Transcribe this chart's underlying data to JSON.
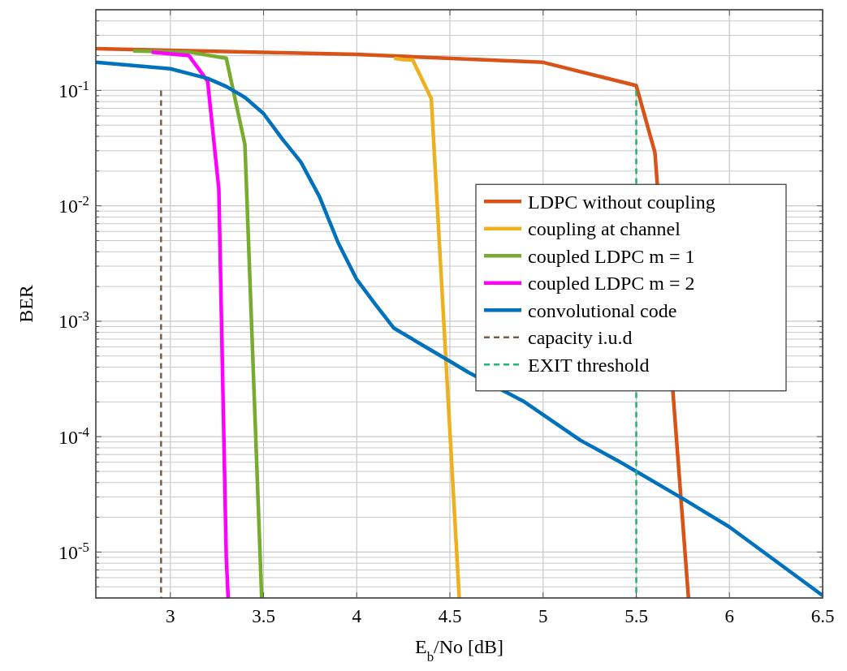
{
  "chart_data": {
    "type": "line",
    "xlabel": "E$_{b}$/No [dB]",
    "ylabel": "BER",
    "log": "y",
    "grid": true,
    "legend": "right",
    "line_style": "solid",
    "marker": "none",
    "xlim": [
      2.6,
      6.5
    ],
    "xticks": [
      3,
      3.5,
      4,
      4.5,
      5,
      5.5,
      6,
      6.5
    ],
    "ylim": [
      4e-06,
      0.5
    ],
    "yticks": [
      {
        "value": 4e-06,
        "label": null
      },
      {
        "value": 5e-06,
        "label": null
      },
      {
        "value": 6e-06,
        "label": null
      },
      {
        "value": 7e-06,
        "label": null
      },
      {
        "value": 8e-06,
        "label": null
      },
      {
        "value": 9e-06,
        "label": null
      },
      {
        "value": 1e-05,
        "label": "10$^{-5}$"
      },
      {
        "value": 2e-05,
        "label": null
      },
      {
        "value": 3e-05,
        "label": null
      },
      {
        "value": 4e-05,
        "label": null
      },
      {
        "value": 5e-05,
        "label": null
      },
      {
        "value": 6e-05,
        "label": null
      },
      {
        "value": 7e-05,
        "label": null
      },
      {
        "value": 8e-05,
        "label": null
      },
      {
        "value": 9e-05,
        "label": null
      },
      {
        "value": 0.0001,
        "label": "10$^{-4}$"
      },
      {
        "value": 0.0002,
        "label": null
      },
      {
        "value": 0.0003,
        "label": null
      },
      {
        "value": 0.0004,
        "label": null
      },
      {
        "value": 0.0005,
        "label": null
      },
      {
        "value": 0.0006,
        "label": null
      },
      {
        "value": 0.0007,
        "label": null
      },
      {
        "value": 0.0008,
        "label": null
      },
      {
        "value": 0.0009,
        "label": null
      },
      {
        "value": 0.001,
        "label": "10$^{-3}$"
      },
      {
        "value": 0.002,
        "label": null
      },
      {
        "value": 0.003,
        "label": null
      },
      {
        "value": 0.004,
        "label": null
      },
      {
        "value": 0.005,
        "label": null
      },
      {
        "value": 0.006,
        "label": null
      },
      {
        "value": 0.007,
        "label": null
      },
      {
        "value": 0.008,
        "label": null
      },
      {
        "value": 0.009,
        "label": null
      },
      {
        "value": 0.01,
        "label": "10$^{-2}$"
      },
      {
        "value": 0.02,
        "label": null
      },
      {
        "value": 0.03,
        "label": null
      },
      {
        "value": 0.04,
        "label": null
      },
      {
        "value": 0.05,
        "label": null
      },
      {
        "value": 0.06,
        "label": null
      },
      {
        "value": 0.07,
        "label": null
      },
      {
        "value": 0.08,
        "label": null
      },
      {
        "value": 0.09,
        "label": null
      },
      {
        "value": 0.1,
        "label": "10$^{-1}$"
      },
      {
        "value": 0.2,
        "label": null
      },
      {
        "value": 0.3,
        "label": null
      },
      {
        "value": 0.4,
        "label": null
      },
      {
        "value": 0.5,
        "label": null
      }
    ],
    "series": [
      {
        "name": "LDPC without coupling",
        "color": "#d95319",
        "x": [
          2.6,
          4,
          5,
          5.5,
          5.6,
          5.78
        ],
        "values": [
          0.23,
          0.205,
          0.175,
          0.11,
          0.029,
          4e-06
        ]
      },
      {
        "name": "coupling at channel",
        "color": "#edb120",
        "x": [
          4.2,
          4.25,
          4.3,
          4.4,
          4.55
        ],
        "values": [
          0.19,
          0.185,
          0.184,
          0.085,
          4e-06
        ]
      },
      {
        "name": "coupled LDPC m = 1",
        "color": "#77ac30",
        "x": [
          2.8,
          3.1,
          3.3,
          3.4,
          3.49
        ],
        "values": [
          0.22,
          0.215,
          0.19,
          0.034,
          4e-06
        ]
      },
      {
        "name": "coupled LDPC m = 2",
        "color": "#ff00ff",
        "x": [
          2.9,
          3.1,
          3.2,
          3.26,
          3.3,
          3.31
        ],
        "values": [
          0.215,
          0.2,
          0.12,
          0.014,
          9e-06,
          4e-06
        ]
      },
      {
        "name": "convolutional code",
        "color": "#0072bd",
        "x": [
          2.6,
          3,
          3.2,
          3.3,
          3.4,
          3.5,
          3.6,
          3.7,
          3.8,
          3.9,
          4,
          4.1,
          4.2,
          4.4,
          4.5,
          4.6,
          4.9,
          5,
          5.2,
          5.4,
          5.5,
          5.75,
          6,
          6.5
        ],
        "values": [
          0.175,
          0.154,
          0.127,
          0.108,
          0.087,
          0.063,
          0.038,
          0.024,
          0.012,
          0.0048,
          0.0023,
          0.0014,
          0.00087,
          0.00056,
          0.00045,
          0.00036,
          0.0002,
          0.000155,
          9.3e-05,
          6.2e-05,
          5e-05,
          2.9e-05,
          1.65e-05,
          4.2e-06
        ]
      },
      {
        "name": "capacity i.u.d",
        "color": "#7e5c4c",
        "line_style": "dashed",
        "x": [
          2.95,
          2.95
        ],
        "values": [
          0.1,
          4e-06
        ]
      },
      {
        "name": "EXIT threshold",
        "color": "#20b573",
        "line_style": "dashed",
        "x": [
          5.5,
          5.5
        ],
        "values": [
          0.1,
          4e-06
        ]
      }
    ]
  }
}
